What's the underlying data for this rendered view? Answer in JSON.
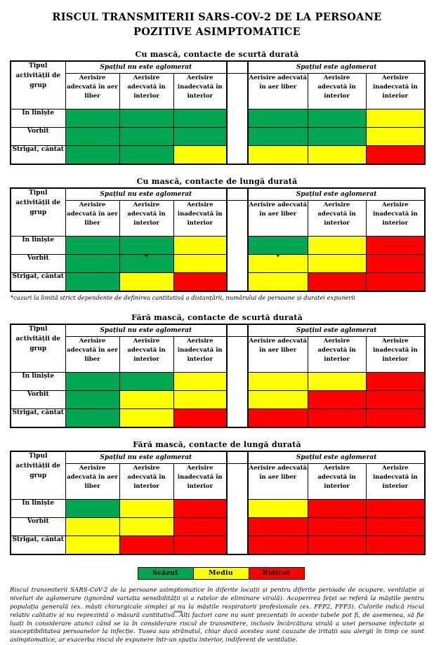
{
  "title": "RISCUL TRANSMITERII SARS-COV-2 DE LA PERSOANE POZITIVE ASIMPTOMATICE",
  "risk_colors": {
    "low": "#00A651",
    "medium": "#FFFF00",
    "high": "#FF0000"
  },
  "table_headers": {
    "activity_column": "Tipul activității de grup",
    "group_not_crowded": "Spațiul nu este aglomerat",
    "group_crowded": "Spațiul este aglomerat",
    "ventilation_columns": [
      "Aerisire adecvată în aer liber",
      "Aerisire adecvată în interior",
      "Aerisire inadecvată în interior"
    ],
    "activity_rows": [
      "In liniște",
      "Vorbit",
      "Strigat, cântat"
    ]
  },
  "tables": [
    {
      "title": "Cu mască, contacte de scurtă durată",
      "rows": [
        [
          "low",
          "low",
          "low",
          "low",
          "low",
          "medium"
        ],
        [
          "low",
          "low",
          "low",
          "low",
          "low",
          "medium"
        ],
        [
          "low",
          "low",
          "medium",
          "medium",
          "medium",
          "high"
        ]
      ]
    },
    {
      "title": "Cu mască, contacte de lungă durată",
      "rows": [
        [
          "low",
          "low",
          "medium",
          "low",
          "medium",
          "high"
        ],
        [
          "low",
          "low*",
          "medium",
          "medium*",
          "medium",
          "high"
        ],
        [
          "low",
          "medium",
          "high",
          "medium",
          "high",
          "high"
        ]
      ]
    },
    {
      "title": "Fără mască, contacte de scurtă durată",
      "rows": [
        [
          "low",
          "low",
          "medium",
          "medium",
          "medium",
          "high"
        ],
        [
          "low",
          "medium",
          "medium",
          "medium",
          "high",
          "high"
        ],
        [
          "low",
          "medium",
          "high",
          "high",
          "high",
          "high"
        ]
      ]
    },
    {
      "title": "Fără mască, contacte de lungă durată",
      "rows": [
        [
          "low",
          "medium",
          "high",
          "medium",
          "high",
          "high"
        ],
        [
          "medium",
          "medium",
          "high",
          "high",
          "high",
          "high"
        ],
        [
          "medium",
          "high",
          "high",
          "high",
          "high",
          "high"
        ]
      ]
    }
  ],
  "footnote": "*cazuri la limită strict dependente de definirea cantitativă a distanțării, numărului de persoane și duratei expunerii",
  "legend": {
    "items": [
      {
        "label": "Scăzut",
        "level": "low"
      },
      {
        "label": "Mediu",
        "level": "medium"
      },
      {
        "label": "Ridicat",
        "level": "high"
      }
    ]
  },
  "description": "Riscul transmiterii SARS-CoV-2 de la persoane asimptomatice în diferite locații și pentru diferite perioade de ocupare, ventilație și niveluri de aglomerare (ignorând variația sensibilității și a ratelor de eliminare virală). Acoperirea feței se referă la măștile pentru populația generală (ex. măști chirurgicale simple) și nu la măștile respiratorii profesionale (ex. FFP2, FFP3). Culorile indică riscul relativ calitativ și nu reprezintă o măsură cantitativă. Alți factori care nu sunt prezentați în aceste tabele pot fi, de asemenea, să fie luați în considerare atunci când se ia în considerare riscul de transmitere, inclusiv încărcătura virală a unei persoane infectate și susceptibilitatea persoanelor la infecție. Tusea sau strănutul, chiar dacă acestea sunt cauzate de iritații sau alergii în timp ce sunt asimptomatice, ar exacerba riscul de expunere într-un spațiu interior, indiferent de ventilație."
}
